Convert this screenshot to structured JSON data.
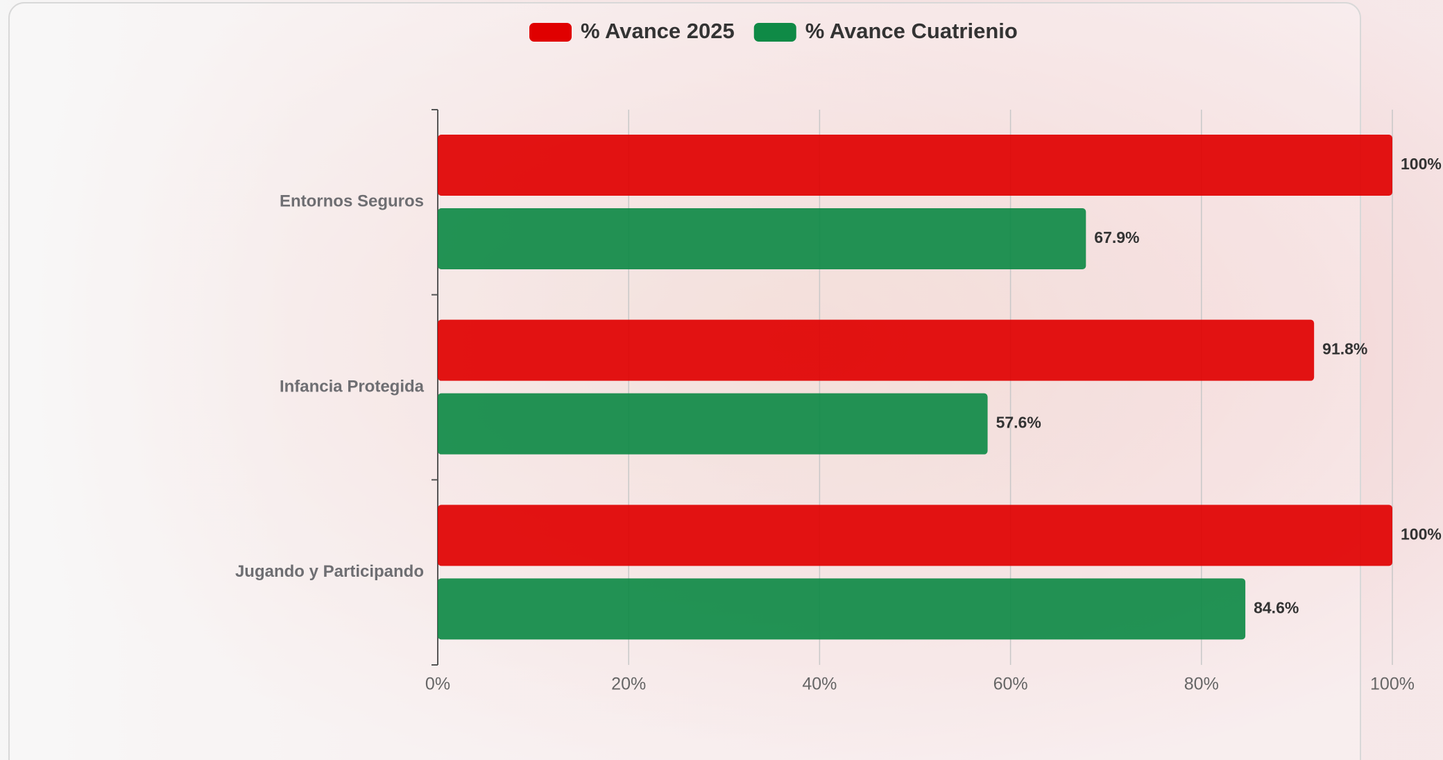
{
  "chart_data": {
    "type": "barh",
    "categories": [
      "Entornos Seguros",
      "Infancia Protegida",
      "Jugando y Participando"
    ],
    "series": [
      {
        "name": "% Avance 2025",
        "color": "#e00000",
        "values": [
          100,
          91.8,
          100
        ],
        "value_labels": [
          "100%",
          "91.8%",
          "100%"
        ]
      },
      {
        "name": "% Avance Cuatrienio",
        "color": "#0f8a46",
        "values": [
          67.9,
          57.6,
          84.6
        ],
        "value_labels": [
          "67.9%",
          "57.6%",
          "84.6%"
        ]
      }
    ],
    "xlim": [
      0,
      100
    ],
    "xticks": [
      {
        "value": 0,
        "label": "0%"
      },
      {
        "value": 20,
        "label": "20%"
      },
      {
        "value": 40,
        "label": "40%"
      },
      {
        "value": 60,
        "label": "60%"
      },
      {
        "value": 80,
        "label": "80%"
      },
      {
        "value": 100,
        "label": "100%"
      }
    ],
    "grid": true,
    "legend": "top"
  }
}
